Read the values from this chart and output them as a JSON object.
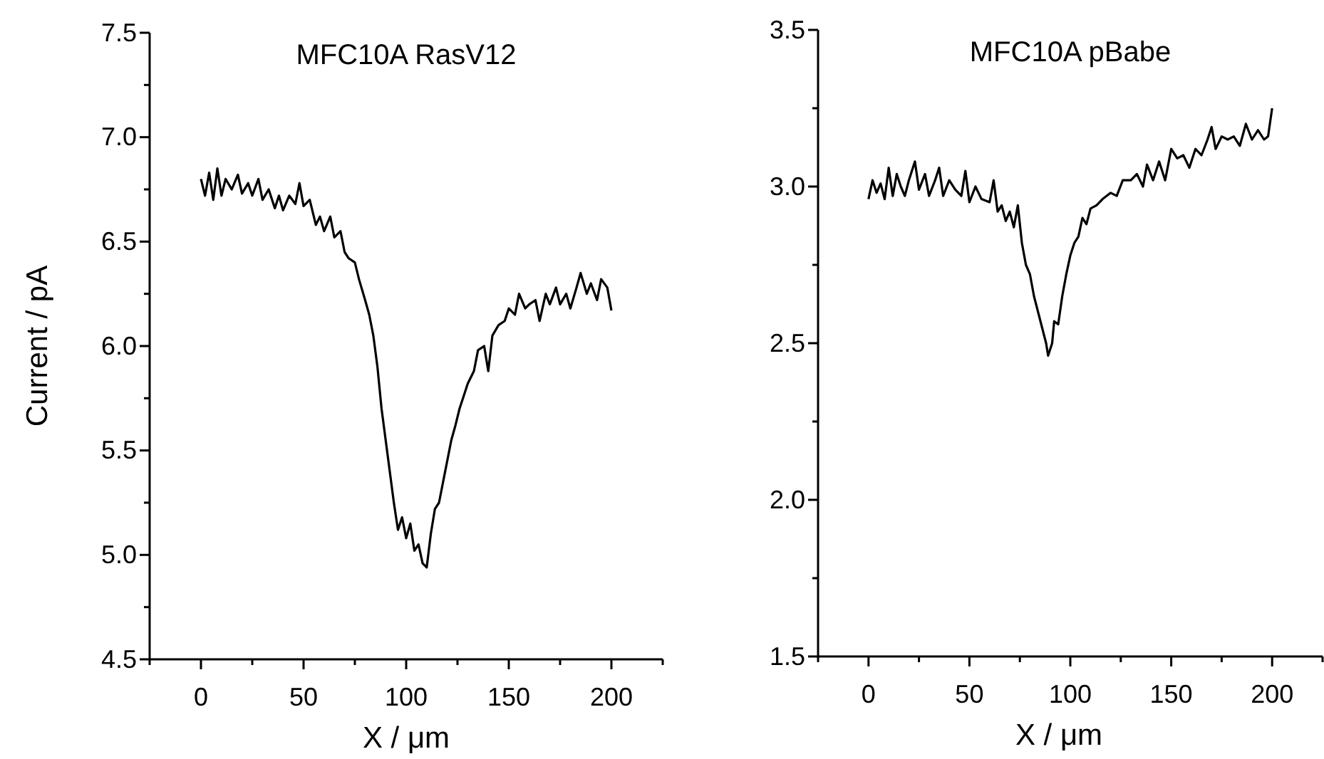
{
  "chart_data": [
    {
      "type": "line",
      "title": "MFC10A RasV12",
      "xlabel": "X / μm",
      "ylabel": "Current / pA",
      "xlim": [
        -25,
        225
      ],
      "ylim": [
        4.5,
        7.5
      ],
      "xticks": [
        {
          "value": -25,
          "label": null
        },
        0,
        {
          "value": 25,
          "label": null
        },
        50,
        {
          "value": 75,
          "label": null
        },
        100,
        {
          "value": 125,
          "label": null
        },
        150,
        {
          "value": 175,
          "label": null
        },
        200,
        {
          "value": 225,
          "label": null
        }
      ],
      "yticks": [
        {
          "value": 4.5,
          "label": "4.5"
        },
        {
          "value": 4.75,
          "label": null
        },
        {
          "value": 5,
          "label": "5.0"
        },
        {
          "value": 5.25,
          "label": null
        },
        {
          "value": 5.5,
          "label": "5.5"
        },
        {
          "value": 5.75,
          "label": null
        },
        {
          "value": 6,
          "label": "6.0"
        },
        {
          "value": 6.25,
          "label": null
        },
        {
          "value": 6.5,
          "label": "6.5"
        },
        {
          "value": 6.75,
          "label": null
        },
        {
          "value": 7,
          "label": "7.0"
        },
        {
          "value": 7.25,
          "label": null
        },
        {
          "value": 7.5,
          "label": "7.5"
        }
      ],
      "marker": "none",
      "line_style": "solid",
      "series": [
        {
          "color": "#000000",
          "x": [
            0,
            2,
            4,
            6,
            8,
            10,
            12,
            15,
            18,
            20,
            23,
            25,
            28,
            30,
            33,
            36,
            38,
            40,
            43,
            46,
            48,
            50,
            53,
            56,
            58,
            60,
            63,
            65,
            68,
            70,
            72,
            75,
            77,
            80,
            82,
            84,
            86,
            88,
            90,
            92,
            94,
            96,
            98,
            100,
            102,
            104,
            106,
            108,
            110,
            112,
            114,
            116,
            118,
            120,
            122,
            124,
            126,
            128,
            130,
            133,
            135,
            138,
            140,
            142,
            145,
            148,
            150,
            153,
            155,
            158,
            160,
            163,
            165,
            168,
            170,
            173,
            175,
            178,
            180,
            183,
            185,
            188,
            190,
            193,
            195,
            198,
            200
          ],
          "values": [
            6.8,
            6.72,
            6.83,
            6.7,
            6.85,
            6.72,
            6.8,
            6.75,
            6.82,
            6.73,
            6.78,
            6.72,
            6.8,
            6.7,
            6.75,
            6.66,
            6.72,
            6.65,
            6.72,
            6.68,
            6.78,
            6.67,
            6.7,
            6.58,
            6.62,
            6.55,
            6.62,
            6.52,
            6.55,
            6.45,
            6.42,
            6.4,
            6.32,
            6.22,
            6.15,
            6.05,
            5.9,
            5.7,
            5.55,
            5.4,
            5.25,
            5.12,
            5.18,
            5.08,
            5.15,
            5.02,
            5.05,
            4.96,
            4.94,
            5.1,
            5.22,
            5.25,
            5.35,
            5.45,
            5.55,
            5.62,
            5.7,
            5.76,
            5.82,
            5.88,
            5.98,
            6.0,
            5.88,
            6.05,
            6.1,
            6.12,
            6.18,
            6.15,
            6.25,
            6.18,
            6.2,
            6.22,
            6.12,
            6.25,
            6.2,
            6.28,
            6.2,
            6.25,
            6.18,
            6.28,
            6.35,
            6.25,
            6.3,
            6.22,
            6.32,
            6.28,
            6.17
          ]
        }
      ]
    },
    {
      "type": "line",
      "title": "MFC10A pBabe",
      "xlabel": "X / μm",
      "xlim": [
        -25,
        225
      ],
      "ylim": [
        1.5,
        3.5
      ],
      "xticks": [
        {
          "value": -25,
          "label": null
        },
        0,
        {
          "value": 25,
          "label": null
        },
        50,
        {
          "value": 75,
          "label": null
        },
        100,
        {
          "value": 125,
          "label": null
        },
        150,
        {
          "value": 175,
          "label": null
        },
        200,
        {
          "value": 225,
          "label": null
        }
      ],
      "yticks": [
        {
          "value": 1.5,
          "label": "1.5"
        },
        {
          "value": 1.75,
          "label": null
        },
        {
          "value": 2,
          "label": "2.0"
        },
        {
          "value": 2.25,
          "label": null
        },
        {
          "value": 2.5,
          "label": "2.5"
        },
        {
          "value": 2.75,
          "label": null
        },
        {
          "value": 3,
          "label": "3.0"
        },
        {
          "value": 3.25,
          "label": null
        },
        {
          "value": 3.5,
          "label": "3.5"
        }
      ],
      "marker": "none",
      "line_style": "solid",
      "series": [
        {
          "color": "#000000",
          "x": [
            0,
            2,
            4,
            6,
            8,
            10,
            12,
            14,
            16,
            18,
            20,
            23,
            25,
            28,
            30,
            33,
            35,
            37,
            40,
            43,
            46,
            48,
            50,
            53,
            56,
            60,
            62,
            64,
            66,
            68,
            70,
            72,
            74,
            76,
            78,
            80,
            82,
            84,
            86,
            88,
            89,
            91,
            92,
            94,
            96,
            98,
            100,
            102,
            104,
            106,
            108,
            110,
            113,
            116,
            120,
            123,
            126,
            130,
            133,
            136,
            138,
            141,
            144,
            147,
            150,
            153,
            156,
            159,
            162,
            165,
            168,
            170,
            172,
            175,
            178,
            181,
            184,
            187,
            190,
            193,
            196,
            198,
            200
          ],
          "values": [
            2.96,
            3.02,
            2.98,
            3.01,
            2.96,
            3.06,
            2.97,
            3.04,
            3.0,
            2.97,
            3.02,
            3.08,
            2.99,
            3.04,
            2.97,
            3.02,
            3.06,
            2.97,
            3.02,
            2.99,
            2.97,
            3.05,
            2.95,
            3.0,
            2.96,
            2.95,
            3.02,
            2.92,
            2.94,
            2.89,
            2.92,
            2.87,
            2.94,
            2.82,
            2.75,
            2.72,
            2.65,
            2.6,
            2.55,
            2.5,
            2.46,
            2.5,
            2.57,
            2.56,
            2.65,
            2.72,
            2.78,
            2.82,
            2.84,
            2.9,
            2.88,
            2.93,
            2.94,
            2.96,
            2.98,
            2.97,
            3.02,
            3.02,
            3.04,
            3.0,
            3.07,
            3.02,
            3.08,
            3.02,
            3.12,
            3.09,
            3.1,
            3.06,
            3.12,
            3.1,
            3.15,
            3.19,
            3.12,
            3.16,
            3.15,
            3.16,
            3.13,
            3.2,
            3.15,
            3.18,
            3.15,
            3.16,
            3.25
          ]
        }
      ]
    }
  ]
}
